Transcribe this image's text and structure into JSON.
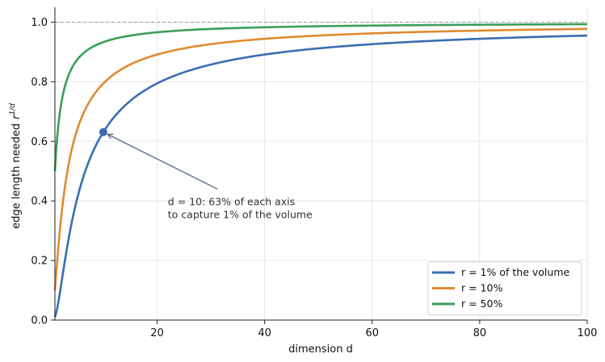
{
  "chart_data": {
    "type": "line",
    "title": "",
    "xlabel": "dimension d",
    "ylabel": "edge length needed",
    "ylabel_math_base": "r",
    "ylabel_math_exp": "1/d",
    "xlim": [
      1,
      100
    ],
    "ylim": [
      0,
      1.05
    ],
    "x_ticks": [
      20,
      40,
      60,
      80,
      100
    ],
    "y_ticks": [
      0.0,
      0.2,
      0.4,
      0.6,
      0.8,
      1.0
    ],
    "x_tick_labels": [
      "20",
      "40",
      "60",
      "80",
      "100"
    ],
    "y_tick_labels": [
      "0.0",
      "0.2",
      "0.4",
      "0.6",
      "0.8",
      "1.0"
    ],
    "grid": true,
    "reference_line": {
      "y": 1.0,
      "style": "dashed",
      "color": "#999999"
    },
    "formula": "y = r^(1/d)",
    "series": [
      {
        "name": "r = 1% of the volume",
        "r": 0.01,
        "color": "#3a6eb2",
        "x": [
          1,
          2,
          3,
          5,
          10,
          20,
          40,
          60,
          80,
          100
        ],
        "values": [
          0.01,
          0.1,
          0.215,
          0.398,
          0.631,
          0.794,
          0.891,
          0.926,
          0.944,
          0.955
        ]
      },
      {
        "name": "r = 10%",
        "r": 0.1,
        "color": "#e08a2e",
        "x": [
          1,
          2,
          3,
          5,
          10,
          20,
          40,
          60,
          80,
          100
        ],
        "values": [
          0.1,
          0.316,
          0.464,
          0.631,
          0.794,
          0.891,
          0.944,
          0.962,
          0.972,
          0.977
        ]
      },
      {
        "name": "r = 50%",
        "r": 0.5,
        "color": "#3a9e5a",
        "x": [
          1,
          2,
          3,
          5,
          10,
          20,
          40,
          60,
          80,
          100
        ],
        "values": [
          0.5,
          0.707,
          0.794,
          0.871,
          0.933,
          0.966,
          0.983,
          0.989,
          0.991,
          0.993
        ]
      }
    ],
    "highlight_point": {
      "x": 10,
      "y": 0.631,
      "color": "#3a6eb2"
    },
    "annotation": {
      "lines": [
        "d = 10: 63% of each axis",
        "to capture 1% of the volume"
      ],
      "text_anchor_x": 22,
      "text_anchor_y": 0.41
    },
    "legend": {
      "position": "lower-right"
    }
  }
}
